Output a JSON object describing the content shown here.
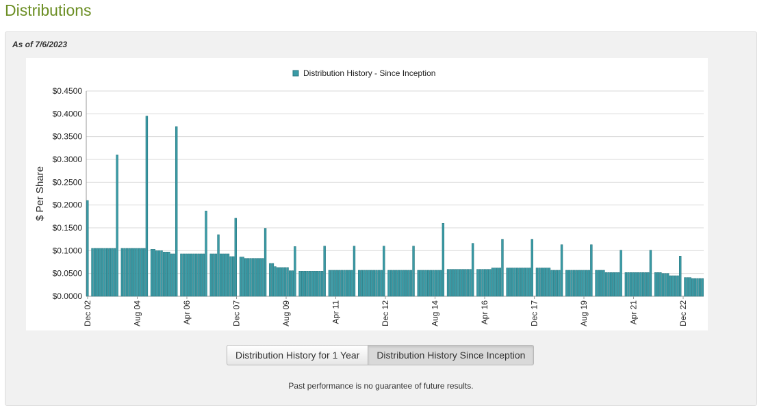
{
  "page": {
    "title": "Distributions"
  },
  "panel": {
    "as_of": "As of 7/6/2023",
    "disclaimer": "Past performance is no guarantee of future results."
  },
  "buttons": {
    "one_year": "Distribution History for 1 Year",
    "since_inception": "Distribution History Since Inception"
  },
  "colors": {
    "bar": "#3a9ba6",
    "bar_stroke": "#2a7780",
    "title": "#6b8e23"
  },
  "chart_data": {
    "type": "bar",
    "legend": [
      "Distribution History - Since Inception"
    ],
    "legend_position": "top-center",
    "ylabel": "$ Per Share",
    "xlabel": "",
    "ylim": [
      0,
      0.45
    ],
    "grid": true,
    "y_ticks": [
      "$0.0000",
      "$0.0500",
      "$0.1000",
      "$0.1500",
      "$0.2000",
      "$0.2500",
      "$0.3000",
      "$0.3500",
      "$0.4000",
      "$0.4500"
    ],
    "x_ticks": [
      "Dec 02",
      "Aug 04",
      "Apr 06",
      "Dec 07",
      "Aug 09",
      "Apr 11",
      "Dec 12",
      "Aug 14",
      "Apr 16",
      "Dec 17",
      "Aug 19",
      "Apr 21",
      "Dec 22"
    ],
    "series": [
      {
        "name": "Distribution History - Since Inception",
        "values": [
          0.21,
          0,
          0.105,
          0.105,
          0.105,
          0.105,
          0.105,
          0.105,
          0.105,
          0.105,
          0.105,
          0.105,
          0.31,
          0,
          0.105,
          0.105,
          0.105,
          0.105,
          0.105,
          0.105,
          0.105,
          0.105,
          0.105,
          0.105,
          0.395,
          0,
          0.103,
          0.103,
          0.1,
          0.1,
          0.1,
          0.097,
          0.097,
          0.097,
          0.093,
          0.093,
          0.372,
          0,
          0.093,
          0.093,
          0.093,
          0.093,
          0.093,
          0.093,
          0.093,
          0.093,
          0.093,
          0.093,
          0.187,
          0,
          0.093,
          0.093,
          0.093,
          0.135,
          0.093,
          0.093,
          0.093,
          0.093,
          0.087,
          0.087,
          0.171,
          0,
          0.086,
          0.086,
          0.083,
          0.083,
          0.083,
          0.083,
          0.083,
          0.083,
          0.083,
          0.083,
          0.149,
          0,
          0.072,
          0.072,
          0.065,
          0.063,
          0.063,
          0.063,
          0.063,
          0.063,
          0.056,
          0.056,
          0.109,
          0,
          0.055,
          0.055,
          0.055,
          0.055,
          0.055,
          0.055,
          0.055,
          0.055,
          0.055,
          0.055,
          0.11,
          0,
          0.057,
          0.057,
          0.057,
          0.057,
          0.057,
          0.057,
          0.057,
          0.057,
          0.057,
          0.057,
          0.11,
          0,
          0.057,
          0.057,
          0.057,
          0.057,
          0.057,
          0.057,
          0.057,
          0.057,
          0.057,
          0.057,
          0.11,
          0,
          0.057,
          0.057,
          0.057,
          0.057,
          0.057,
          0.057,
          0.057,
          0.057,
          0.057,
          0.057,
          0.11,
          0,
          0.057,
          0.057,
          0.057,
          0.057,
          0.057,
          0.057,
          0.057,
          0.057,
          0.057,
          0.057,
          0.16,
          0,
          0.059,
          0.059,
          0.059,
          0.059,
          0.059,
          0.059,
          0.059,
          0.059,
          0.059,
          0.059,
          0.116,
          0,
          0.059,
          0.059,
          0.059,
          0.059,
          0.059,
          0.059,
          0.062,
          0.062,
          0.062,
          0.062,
          0.125,
          0,
          0.062,
          0.062,
          0.062,
          0.062,
          0.062,
          0.062,
          0.062,
          0.062,
          0.062,
          0.062,
          0.125,
          0,
          0.062,
          0.062,
          0.062,
          0.062,
          0.062,
          0.062,
          0.057,
          0.057,
          0.057,
          0.057,
          0.113,
          0,
          0.057,
          0.057,
          0.057,
          0.057,
          0.057,
          0.057,
          0.057,
          0.057,
          0.057,
          0.057,
          0.113,
          0,
          0.057,
          0.057,
          0.057,
          0.057,
          0.052,
          0.052,
          0.052,
          0.052,
          0.052,
          0.052,
          0.101,
          0,
          0.052,
          0.052,
          0.052,
          0.052,
          0.052,
          0.052,
          0.052,
          0.052,
          0.052,
          0.052,
          0.101,
          0,
          0.052,
          0.052,
          0.052,
          0.05,
          0.05,
          0.05,
          0.045,
          0.045,
          0.045,
          0.045,
          0.088,
          0,
          0.041,
          0.041,
          0.041,
          0.039,
          0.039,
          0.039,
          0.039,
          0.039
        ]
      }
    ]
  }
}
